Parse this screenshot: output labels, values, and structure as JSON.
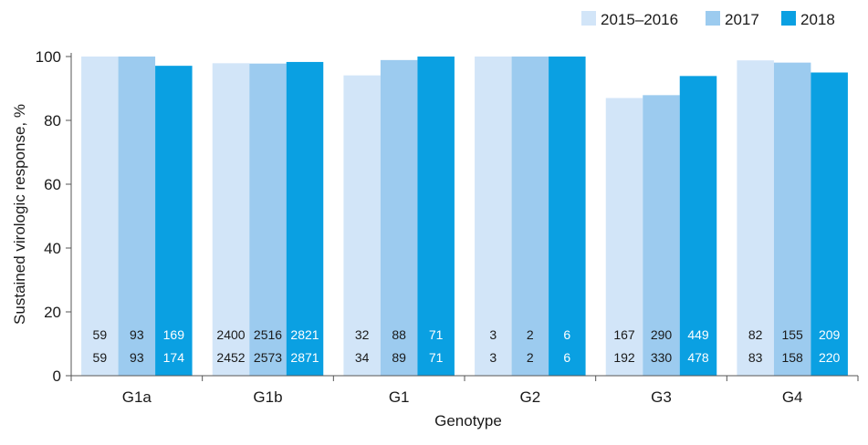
{
  "chart_data": {
    "type": "bar",
    "title": "",
    "xlabel": "Genotype",
    "ylabel": "Sustained virologic response, %",
    "ylim": [
      0,
      100
    ],
    "yticks": [
      0,
      20,
      40,
      60,
      80,
      100
    ],
    "grid": false,
    "legend_position": "top-right",
    "categories": [
      "G1a",
      "G1b",
      "G1",
      "G2",
      "G3",
      "G4"
    ],
    "series": [
      {
        "name": "2015–2016",
        "color": "#d2e5f8",
        "values": [
          100,
          97.9,
          94.1,
          100,
          87.0,
          98.8
        ],
        "numerators": [
          "59",
          "2400",
          "32",
          "3",
          "167",
          "82"
        ],
        "denominators": [
          "59",
          "2452",
          "34",
          "3",
          "192",
          "83"
        ]
      },
      {
        "name": "2017",
        "color": "#9ccbef",
        "values": [
          100,
          97.8,
          98.9,
          100,
          87.9,
          98.1
        ],
        "numerators": [
          "93",
          "2516",
          "88",
          "2",
          "290",
          "155"
        ],
        "denominators": [
          "93",
          "2573",
          "89",
          "2",
          "330",
          "158"
        ]
      },
      {
        "name": "2018",
        "color": "#0aa0e2",
        "values": [
          97.1,
          98.3,
          100,
          100,
          93.9,
          95.0
        ],
        "numerators": [
          "169",
          "2821",
          "71",
          "6",
          "449",
          "209"
        ],
        "denominators": [
          "174",
          "2871",
          "71",
          "6",
          "478",
          "220"
        ]
      }
    ]
  }
}
